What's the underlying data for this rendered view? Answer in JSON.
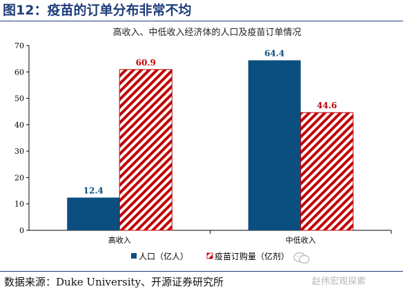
{
  "figure": {
    "title": "图12：疫苗的订单分布非常不均",
    "source": "数据来源：Duke University、开源证券研究所",
    "watermark": "赵伟宏观探索"
  },
  "colors": {
    "population": "#0a4f7f",
    "vaccine": "#c00000",
    "brand": "#1f3d7a"
  },
  "chart_data": {
    "type": "bar",
    "title": "高收入、中低收入经济体的人口及疫苗订单情况",
    "categories": [
      "高收入",
      "中低收入"
    ],
    "series": [
      {
        "name": "人口（亿人）",
        "values": [
          12.4,
          64.4
        ],
        "labels": [
          "12.4",
          "64.4"
        ]
      },
      {
        "name": "疫苗订购量（亿剂）",
        "values": [
          60.9,
          44.6
        ],
        "labels": [
          "60.9",
          "44.6"
        ]
      }
    ],
    "ylim": [
      0,
      70
    ],
    "yticks": [
      0,
      10,
      20,
      30,
      40,
      50,
      60,
      70
    ],
    "ytick_labels": [
      "0",
      "10",
      "20",
      "30",
      "40",
      "50",
      "60",
      "70"
    ],
    "xlabel": "",
    "ylabel": "",
    "grid": false,
    "legend": "bottom"
  }
}
